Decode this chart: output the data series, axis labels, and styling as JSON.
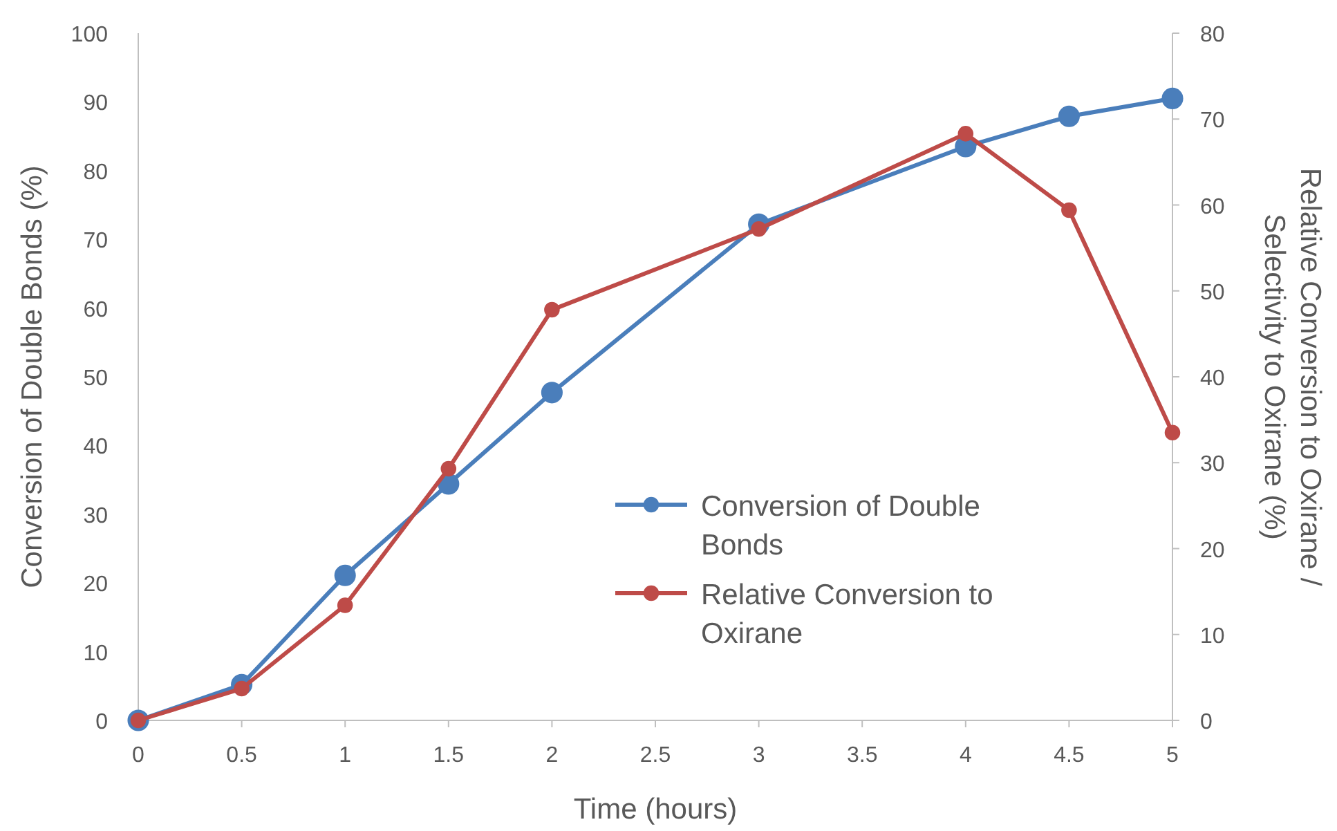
{
  "chart_data": {
    "type": "line",
    "xlabel": "Time (hours)",
    "ylabel": "Conversion of Double Bonds (%)",
    "y2label": "Relative Conversion to Oxirane / Selectivity to Oxirane (%)",
    "x": [
      0,
      0.5,
      1,
      1.5,
      2,
      3,
      4,
      4.5,
      5
    ],
    "xlim": [
      0,
      5
    ],
    "xticks": [
      0,
      0.5,
      1,
      1.5,
      2,
      2.5,
      3,
      3.5,
      4,
      4.5,
      5
    ],
    "ylim": [
      0,
      100
    ],
    "yticks": [
      0,
      10,
      20,
      30,
      40,
      50,
      60,
      70,
      80,
      90,
      100
    ],
    "y2lim": [
      0,
      80
    ],
    "y2ticks": [
      0,
      10,
      20,
      30,
      40,
      50,
      60,
      70,
      80
    ],
    "series": [
      {
        "name": "Conversion of Double Bonds",
        "color": "#4a7ebb",
        "values": [
          0,
          5.2,
          21.1,
          34.4,
          47.7,
          72.2,
          83.5,
          87.9,
          90.5
        ]
      },
      {
        "name": "Relative Conversion to Oxirane",
        "color": "#be4b48",
        "axis": "y2",
        "values": [
          0,
          3.7,
          13.4,
          29.3,
          47.8,
          57.2,
          68.3,
          59.4,
          33.5
        ]
      }
    ],
    "marker": "circle",
    "line_style": "solid",
    "grid": false,
    "legend": "bottom right"
  }
}
